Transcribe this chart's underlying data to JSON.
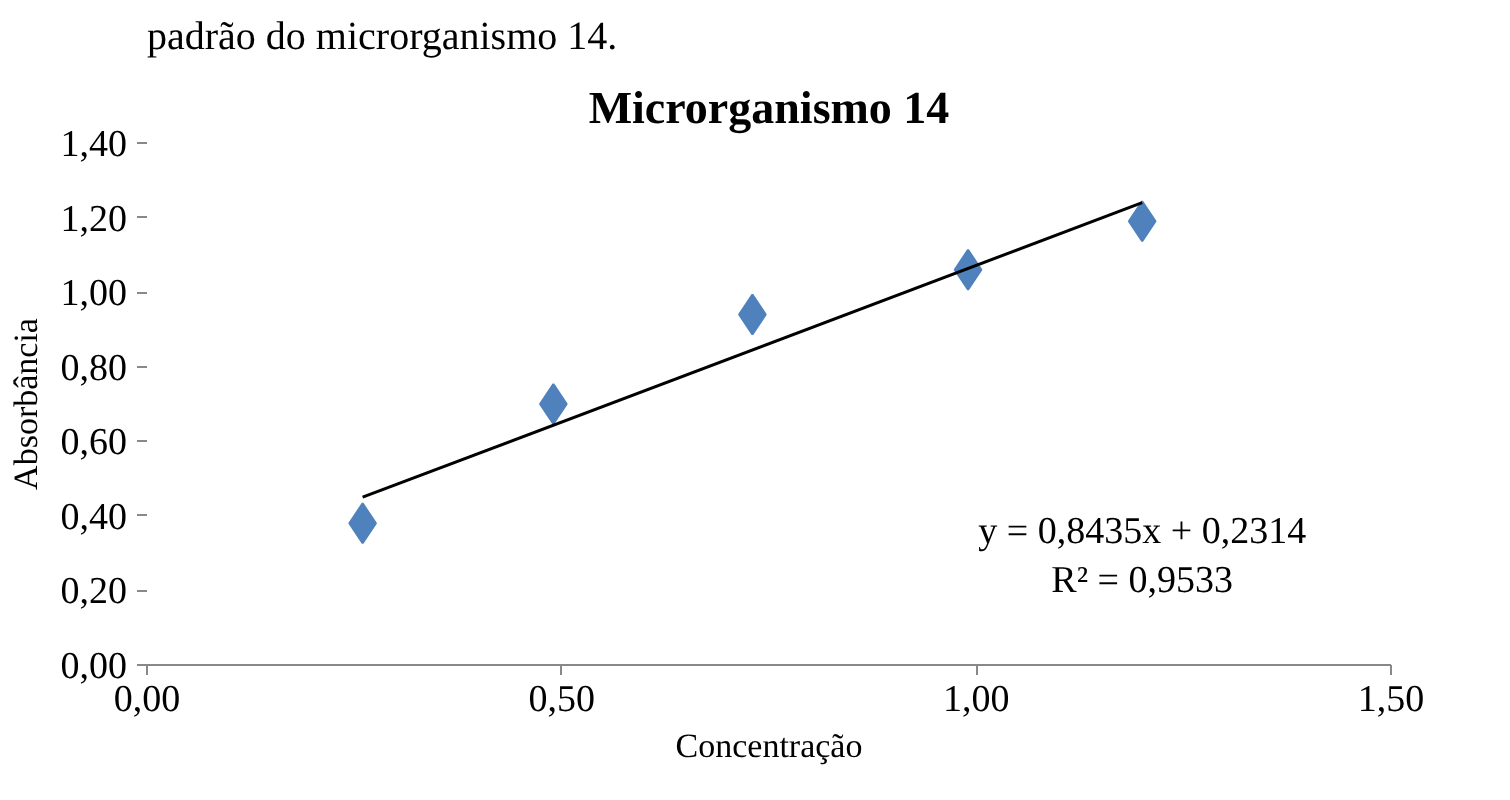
{
  "chart_data": {
    "type": "scatter",
    "title": "Microrganismo 14",
    "xlabel": "Concentração",
    "ylabel": "Absorbância",
    "grid": false,
    "xlim": [
      0,
      1.5
    ],
    "xticks": [
      {
        "value": 0,
        "label": "0,00"
      },
      {
        "value": 0.5,
        "label": "0,50"
      },
      {
        "value": 1,
        "label": "1,00"
      },
      {
        "value": 1.5,
        "label": "1,50"
      }
    ],
    "ylim": [
      0,
      1.4
    ],
    "yticks": [
      {
        "value": 0,
        "label": "0,00"
      },
      {
        "value": 0.2,
        "label": "0,20"
      },
      {
        "value": 0.4,
        "label": "0,40"
      },
      {
        "value": 0.6,
        "label": "0,60"
      },
      {
        "value": 0.8,
        "label": "0,80"
      },
      {
        "value": 1,
        "label": "1,00"
      },
      {
        "value": 1.2,
        "label": "1,20"
      },
      {
        "value": 1.4,
        "label": "1,40"
      }
    ],
    "series": [
      {
        "marker": "diamond",
        "color": "#4f81bd",
        "x": [
          0.26,
          0.49,
          0.73,
          0.99,
          1.2
        ],
        "values": [
          0.38,
          0.7,
          0.94,
          1.06,
          1.19
        ]
      },
      {
        "type": "line",
        "marker": "none",
        "color": "#000000",
        "x": [
          0.26,
          1.2
        ],
        "values": [
          0.45,
          1.24
        ]
      }
    ],
    "annotations": [
      "padrão do microrganismo 14.",
      "y = 0,8435x + 0,2314",
      "R² = 0,9533"
    ]
  }
}
